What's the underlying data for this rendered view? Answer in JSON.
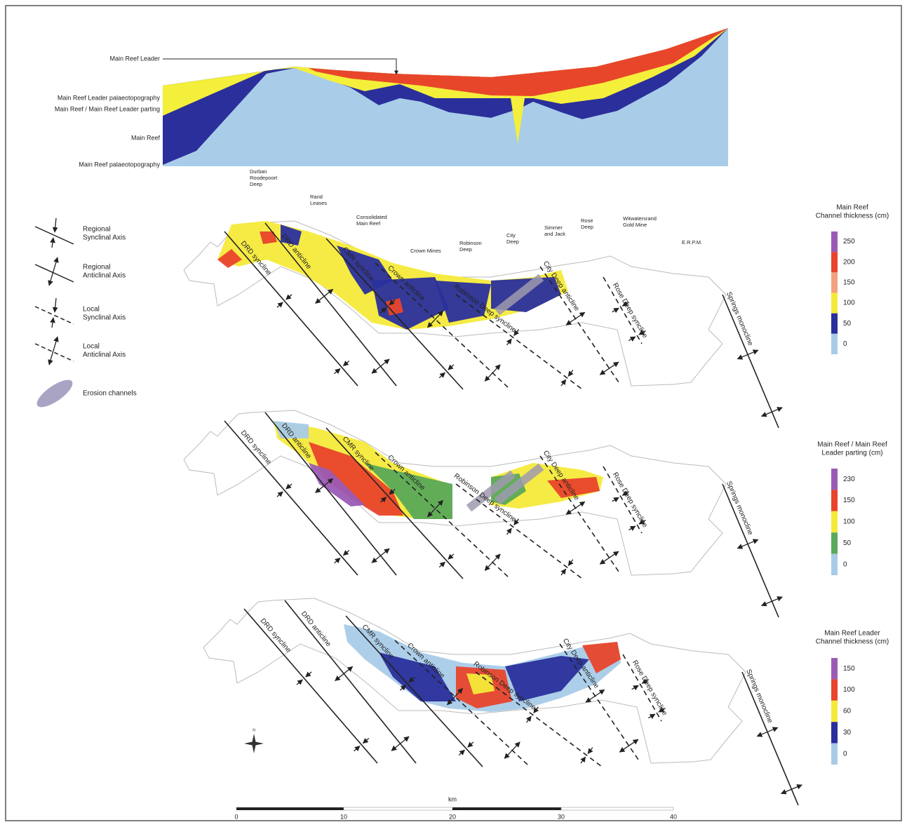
{
  "cross_section": {
    "labels": [
      "Main Reef Leader",
      "Main Reef Leader palaeotopography",
      "Main Reef / Main Reef Leader parting",
      "Main Reef",
      "Main Reef palaeotopography"
    ]
  },
  "mines": [
    [
      "Durban",
      "Roodepoort",
      "Deep"
    ],
    [
      "Rand",
      "Leases"
    ],
    [
      "Consolidated",
      "Main Reef"
    ],
    [
      "Crown Mines"
    ],
    [
      "Robinson",
      "Deep"
    ],
    [
      "City",
      "Deep"
    ],
    [
      "Simmer",
      "and Jack"
    ],
    [
      "Rose",
      "Deep"
    ],
    [
      "Witwatersrand",
      "Gold Mine"
    ],
    [
      "E.R.P.M."
    ]
  ],
  "legend": [
    [
      "Regional",
      "Synclinal Axis"
    ],
    [
      "Regional",
      "Anticlinal Axis"
    ],
    [
      "Local",
      "Synclinal Axis"
    ],
    [
      "Local",
      "Anticlinal Axis"
    ],
    [
      "Erosion channels"
    ]
  ],
  "panels": [
    {
      "title": [
        "Main Reef",
        "Channel thickness (cm)"
      ],
      "scale": [
        {
          "label": 250,
          "color": "#9b5bb5"
        },
        {
          "label": 200,
          "color": "#e8442b"
        },
        {
          "label": 150,
          "color": "#f2a27e"
        },
        {
          "label": 100,
          "color": "#f5ea3a"
        },
        {
          "label": 50,
          "color": "#2a2f9c"
        },
        {
          "label": 0,
          "color": "#a8cbe8"
        }
      ],
      "axes": [
        "DRD syncline",
        "DRD anticline",
        "CMR syncline",
        "Crown anticline",
        "Robinson Deep syncline",
        "City Deep anticline",
        "Rose Deep syncline",
        "Springs monocline"
      ]
    },
    {
      "title": [
        "Main Reef / Main Reef",
        "Leader parting (cm)"
      ],
      "scale": [
        {
          "label": 230,
          "color": "#9b5bb5"
        },
        {
          "label": 150,
          "color": "#e8442b"
        },
        {
          "label": 100,
          "color": "#f5ea3a"
        },
        {
          "label": 50,
          "color": "#5aa95a"
        },
        {
          "label": 0,
          "color": "#a8cbe8"
        }
      ],
      "axes": [
        "DRD syncline",
        "DRD anticline",
        "CMR syncline",
        "Crown anticline",
        "Robinson Deep syncline",
        "City Deep anticline",
        "Rose Deep syncline",
        "Springs monocline"
      ]
    },
    {
      "title": [
        "Main Reef Leader",
        "Channel thickness (cm)"
      ],
      "scale": [
        {
          "label": 150,
          "color": "#9b5bb5"
        },
        {
          "label": 100,
          "color": "#e8442b"
        },
        {
          "label": 60,
          "color": "#f5ea3a"
        },
        {
          "label": 30,
          "color": "#2a2f9c"
        },
        {
          "label": 0,
          "color": "#a8cbe8"
        }
      ],
      "axes": [
        "DRD syncline",
        "DRD anticline",
        "CMR syncline",
        "Crown anticline",
        "Robinson Deep syncline",
        "City Deep anticline",
        "Rose Deep syncline",
        "Springs monocline"
      ]
    }
  ],
  "scale_bar": {
    "unit": "km",
    "ticks": [
      0,
      10,
      20,
      30,
      40
    ]
  }
}
